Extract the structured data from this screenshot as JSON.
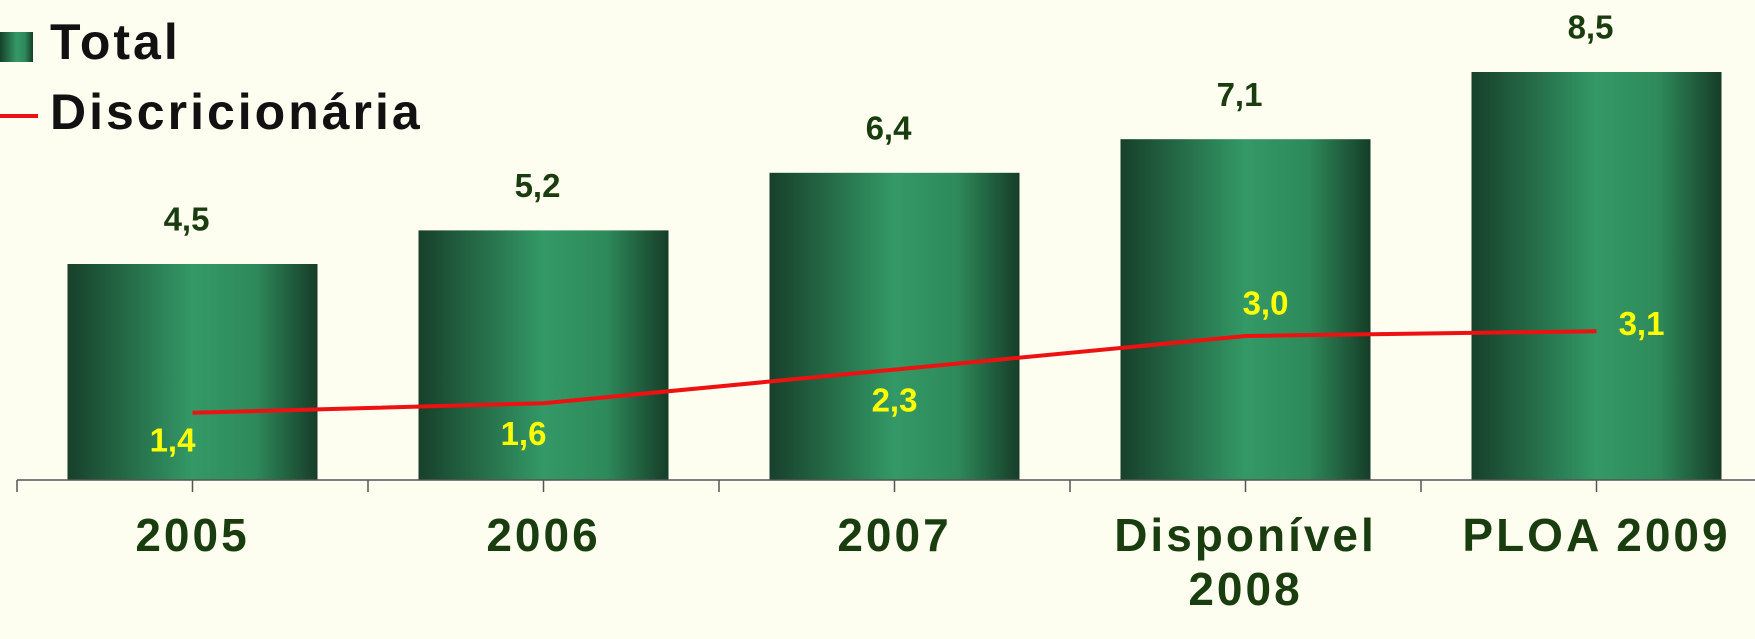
{
  "chart_data": {
    "type": "bar",
    "categories": [
      "2005",
      "2006",
      "2007",
      "Disponível 2008",
      "PLOA 2009"
    ],
    "series": [
      {
        "name": "Total",
        "type": "bar",
        "color": "#2e8b57",
        "values": [
          4.5,
          5.2,
          6.4,
          7.1,
          8.5
        ],
        "value_labels": [
          "4,5",
          "5,2",
          "6,4",
          "7,1",
          "8,5"
        ]
      },
      {
        "name": "Discricionária",
        "type": "line",
        "color": "#ee1111",
        "values": [
          1.4,
          1.6,
          2.3,
          3.0,
          3.1
        ],
        "value_labels": [
          "1,4",
          "1,6",
          "2,3",
          "3,0",
          "3,1"
        ]
      }
    ],
    "ylim": [
      0,
      10
    ]
  }
}
